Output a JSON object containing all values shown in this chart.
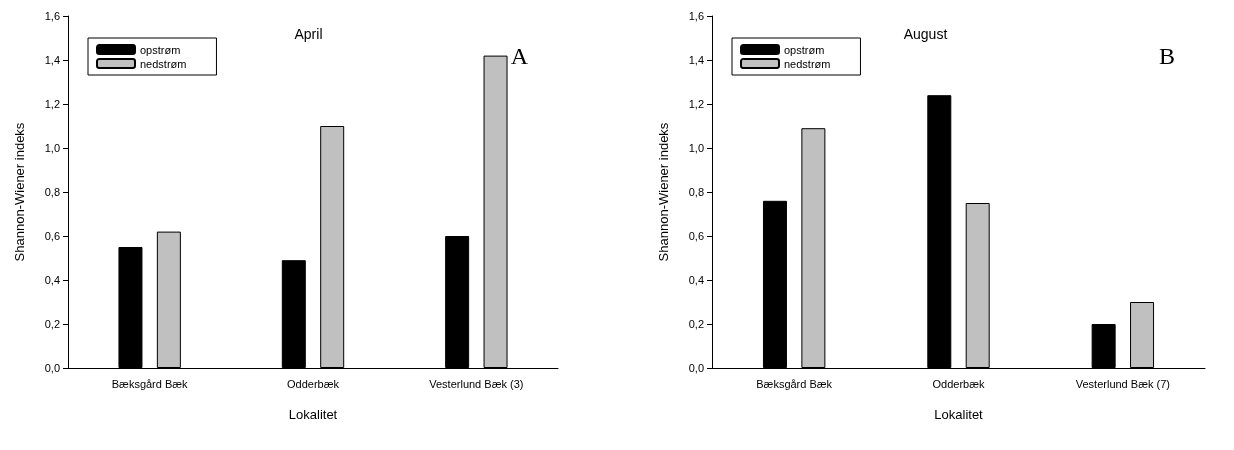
{
  "chart_data": [
    {
      "type": "bar",
      "title": "April",
      "xlabel": "Lokalitet",
      "ylabel": "Shannon-Wiener indeks",
      "categories": [
        "Bæksgård Bæk",
        "Odderbæk",
        "Vesterlund Bæk (3)"
      ],
      "series": [
        {
          "name": "opstrøm",
          "color": "#000000",
          "values": [
            0.55,
            0.49,
            0.6
          ]
        },
        {
          "name": "nedstrøm",
          "color": "#c0c0c0",
          "values": [
            0.62,
            1.1,
            1.42
          ]
        }
      ],
      "ylim": [
        0,
        1.6
      ],
      "yticks": [
        {
          "value": 0,
          "label": "0,0"
        },
        {
          "value": 0.2,
          "label": "0,2"
        },
        {
          "value": 0.4,
          "label": "0,4"
        },
        {
          "value": 0.6,
          "label": "0,6"
        },
        {
          "value": 0.8,
          "label": "0,8"
        },
        {
          "value": 1.0,
          "label": "1,0"
        },
        {
          "value": 1.2,
          "label": "1,2"
        },
        {
          "value": 1.4,
          "label": "1,4"
        },
        {
          "value": 1.6,
          "label": "1,6"
        }
      ],
      "annotations": [
        "A"
      ],
      "legend": "top left",
      "grid": false
    },
    {
      "type": "bar",
      "title": "August",
      "xlabel": "Lokalitet",
      "ylabel": "Shannon-Wiener indeks",
      "categories": [
        "Bæksgård Bæk",
        "Odderbæk",
        "Vesterlund Bæk (7)"
      ],
      "series": [
        {
          "name": "opstrøm",
          "color": "#000000",
          "values": [
            0.76,
            1.24,
            0.2
          ]
        },
        {
          "name": "nedstrøm",
          "color": "#c0c0c0",
          "values": [
            1.09,
            0.75,
            0.3
          ]
        }
      ],
      "ylim": [
        0,
        1.6
      ],
      "yticks": [
        {
          "value": 0,
          "label": "0,0"
        },
        {
          "value": 0.2,
          "label": "0,2"
        },
        {
          "value": 0.4,
          "label": "0,4"
        },
        {
          "value": 0.6,
          "label": "0,6"
        },
        {
          "value": 0.8,
          "label": "0,8"
        },
        {
          "value": 1.0,
          "label": "1,0"
        },
        {
          "value": 1.2,
          "label": "1,2"
        },
        {
          "value": 1.4,
          "label": "1,4"
        },
        {
          "value": 1.6,
          "label": "1,6"
        }
      ],
      "annotations": [
        "B"
      ],
      "legend": "top left",
      "grid": false
    }
  ]
}
